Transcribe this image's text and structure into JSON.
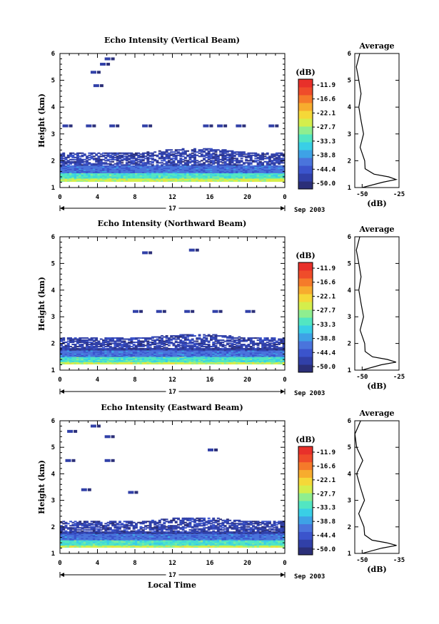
{
  "x_label": "Local Time",
  "date_label": "Sep 2003",
  "day_label": "17",
  "colorbar_unit": "(dB)",
  "colorbar_ticks": [
    "-11.9",
    "-16.6",
    "-22.1",
    "-27.7",
    "-33.3",
    "-38.8",
    "-44.4",
    "-50.0"
  ],
  "colorbar_colors": [
    "#2b2f78",
    "#3140a8",
    "#3b54cc",
    "#4a74dc",
    "#3ea2e6",
    "#39cfe6",
    "#52e6c2",
    "#8fee8f",
    "#d4ee4c",
    "#f5d838",
    "#f7ac2e",
    "#f57a2a",
    "#ef4c2a",
    "#e8302a"
  ],
  "chart_data": [
    {
      "type": "heatmap",
      "title": "Echo Intensity (Vertical Beam)",
      "ylabel": "Height (km)",
      "xlabel": "",
      "x_ticks": [
        "0",
        "4",
        "8",
        "12",
        "16",
        "20",
        "0"
      ],
      "y_ticks": [
        "1",
        "2",
        "3",
        "4",
        "5",
        "6"
      ],
      "xlim": [
        0,
        24
      ],
      "ylim": [
        1,
        6
      ],
      "echo_bands": [
        {
          "from": 1.2,
          "to": 1.35,
          "level": 0.6
        },
        {
          "from": 1.35,
          "to": 1.55,
          "level": 0.45
        },
        {
          "from": 1.55,
          "to": 1.8,
          "level": 0.22
        },
        {
          "from": 1.8,
          "to": 2.3,
          "level": 0.08
        }
      ],
      "scatter_echoes": [
        {
          "t": 0.5,
          "h": 3.3
        },
        {
          "t": 3.0,
          "h": 3.3
        },
        {
          "t": 5.5,
          "h": 3.3
        },
        {
          "t": 9.0,
          "h": 3.3
        },
        {
          "t": 15.5,
          "h": 3.3
        },
        {
          "t": 17.0,
          "h": 3.3
        },
        {
          "t": 19.0,
          "h": 3.3
        },
        {
          "t": 22.5,
          "h": 3.3
        },
        {
          "t": 3.5,
          "h": 5.3
        },
        {
          "t": 4.5,
          "h": 5.6
        },
        {
          "t": 5.0,
          "h": 5.8
        },
        {
          "t": 3.8,
          "h": 4.8
        }
      ],
      "average": {
        "title": "Average",
        "xlabel": "(dB)",
        "x_ticks": [
          "-50",
          "-25"
        ],
        "xlim": [
          -55,
          -25
        ],
        "height": [
          1.0,
          1.2,
          1.3,
          1.4,
          1.5,
          1.7,
          2.0,
          2.5,
          3.0,
          3.5,
          4.0,
          4.5,
          5.0,
          5.5,
          6.0
        ],
        "value": [
          -50,
          -36,
          -27,
          -32,
          -42,
          -48,
          -49,
          -50,
          -50,
          -51,
          -51,
          -52,
          -52,
          -53,
          -53
        ]
      }
    },
    {
      "type": "heatmap",
      "title": "Echo Intensity (Northward Beam)",
      "ylabel": "Height (km)",
      "xlabel": "",
      "x_ticks": [
        "0",
        "4",
        "8",
        "12",
        "16",
        "20",
        "0"
      ],
      "y_ticks": [
        "1",
        "2",
        "3",
        "4",
        "5",
        "6"
      ],
      "xlim": [
        0,
        24
      ],
      "ylim": [
        1,
        6
      ],
      "echo_bands": [
        {
          "from": 1.2,
          "to": 1.3,
          "level": 0.6
        },
        {
          "from": 1.3,
          "to": 1.5,
          "level": 0.45
        },
        {
          "from": 1.5,
          "to": 1.75,
          "level": 0.22
        },
        {
          "from": 1.75,
          "to": 2.2,
          "level": 0.08
        }
      ],
      "scatter_echoes": [
        {
          "t": 8.0,
          "h": 3.2
        },
        {
          "t": 10.5,
          "h": 3.2
        },
        {
          "t": 13.5,
          "h": 3.2
        },
        {
          "t": 16.5,
          "h": 3.2
        },
        {
          "t": 20.0,
          "h": 3.2
        },
        {
          "t": 9.0,
          "h": 5.4
        },
        {
          "t": 14.0,
          "h": 5.5
        }
      ],
      "average": {
        "title": "Average",
        "xlabel": "(dB)",
        "x_ticks": [
          "-50",
          "-25"
        ],
        "xlim": [
          -55,
          -25
        ],
        "height": [
          1.0,
          1.2,
          1.3,
          1.4,
          1.5,
          1.7,
          2.0,
          2.5,
          3.0,
          3.5,
          4.0,
          4.5,
          5.0,
          5.5,
          6.0
        ],
        "value": [
          -50,
          -37,
          -27,
          -33,
          -43,
          -48,
          -49,
          -50,
          -50,
          -51,
          -51,
          -52,
          -52,
          -53,
          -53
        ]
      }
    },
    {
      "type": "heatmap",
      "title": "Echo Intensity (Eastward Beam)",
      "ylabel": "Height (km)",
      "xlabel": "Local Time",
      "x_ticks": [
        "0",
        "4",
        "8",
        "12",
        "16",
        "20",
        "0"
      ],
      "y_ticks": [
        "1",
        "2",
        "3",
        "4",
        "5",
        "6"
      ],
      "xlim": [
        0,
        24
      ],
      "ylim": [
        1,
        6
      ],
      "echo_bands": [
        {
          "from": 1.2,
          "to": 1.3,
          "level": 0.6
        },
        {
          "from": 1.3,
          "to": 1.5,
          "level": 0.45
        },
        {
          "from": 1.5,
          "to": 1.75,
          "level": 0.22
        },
        {
          "from": 1.75,
          "to": 2.2,
          "level": 0.08
        }
      ],
      "scatter_echoes": [
        {
          "t": 1.0,
          "h": 5.6
        },
        {
          "t": 3.5,
          "h": 5.8
        },
        {
          "t": 5.0,
          "h": 5.4
        },
        {
          "t": 0.8,
          "h": 4.5
        },
        {
          "t": 5.0,
          "h": 4.5
        },
        {
          "t": 2.5,
          "h": 3.4
        },
        {
          "t": 7.5,
          "h": 3.3
        },
        {
          "t": 16.0,
          "h": 4.9
        }
      ],
      "average": {
        "title": "Average",
        "xlabel": "(dB)",
        "x_ticks": [
          "-50",
          "-35"
        ],
        "xlim": [
          -53,
          -35
        ],
        "height": [
          1.0,
          1.2,
          1.3,
          1.4,
          1.5,
          1.7,
          2.0,
          2.5,
          3.0,
          3.5,
          4.0,
          4.5,
          5.0,
          5.5,
          6.0
        ],
        "value": [
          -50,
          -42,
          -36,
          -40,
          -46,
          -49,
          -50,
          -50,
          -50,
          -51,
          -51,
          -51,
          -52,
          -52,
          -52
        ]
      }
    }
  ]
}
